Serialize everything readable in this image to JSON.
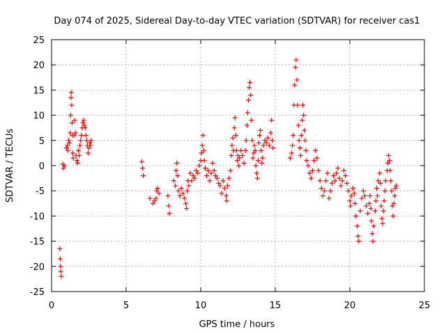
{
  "chart_data": {
    "type": "scatter",
    "title": "Day 074 of 2025, Sidereal Day-to-day VTEC variation (SDTVAR) for receiver cas1",
    "xlabel": "GPS time / hours",
    "ylabel": "SDTVAR / TECUs",
    "xlim": [
      0,
      25
    ],
    "ylim": [
      -25,
      25
    ],
    "xticks": [
      0,
      5,
      10,
      15,
      20,
      25
    ],
    "yticks": [
      -25,
      -20,
      -15,
      -10,
      -5,
      0,
      5,
      10,
      15,
      20,
      25
    ],
    "grid": true,
    "marker": "+",
    "colors": {
      "series": "#ff0000",
      "grid": "#a0a0a0",
      "axis": "#000000"
    },
    "series": [
      {
        "name": "SDTVAR",
        "points": [
          [
            0.55,
            -16.5
          ],
          [
            0.58,
            -18.5
          ],
          [
            0.6,
            -20.0
          ],
          [
            0.62,
            -21.0
          ],
          [
            0.65,
            -22.0
          ],
          [
            0.75,
            0.3
          ],
          [
            0.8,
            -0.5
          ],
          [
            0.85,
            0.0
          ],
          [
            1.0,
            3.5
          ],
          [
            1.05,
            4.0
          ],
          [
            1.1,
            3.0
          ],
          [
            1.15,
            5.0
          ],
          [
            1.2,
            4.5
          ],
          [
            1.25,
            6.5
          ],
          [
            1.28,
            10.0
          ],
          [
            1.3,
            13.5
          ],
          [
            1.32,
            14.5
          ],
          [
            1.35,
            12.0
          ],
          [
            1.38,
            8.5
          ],
          [
            1.4,
            6.0
          ],
          [
            1.42,
            2.5
          ],
          [
            1.45,
            1.5
          ],
          [
            1.5,
            6.0
          ],
          [
            1.55,
            9.0
          ],
          [
            1.6,
            6.5
          ],
          [
            1.65,
            2.0
          ],
          [
            1.7,
            1.0
          ],
          [
            1.75,
            0.5
          ],
          [
            1.8,
            3.0
          ],
          [
            1.85,
            2.0
          ],
          [
            1.9,
            4.0
          ],
          [
            1.95,
            5.0
          ],
          [
            2.0,
            6.0
          ],
          [
            2.05,
            7.5
          ],
          [
            2.1,
            8.5
          ],
          [
            2.15,
            9.0
          ],
          [
            2.2,
            8.0
          ],
          [
            2.25,
            7.5
          ],
          [
            2.3,
            6.0
          ],
          [
            2.35,
            5.0
          ],
          [
            2.4,
            4.0
          ],
          [
            2.45,
            2.5
          ],
          [
            2.5,
            3.5
          ],
          [
            2.55,
            4.5
          ],
          [
            2.6,
            4.0
          ],
          [
            2.65,
            5.0
          ],
          [
            6.05,
            0.8
          ],
          [
            6.1,
            -0.5
          ],
          [
            6.15,
            -2.0
          ],
          [
            6.6,
            -6.5
          ],
          [
            6.8,
            -7.5
          ],
          [
            6.9,
            -7.0
          ],
          [
            7.0,
            -6.5
          ],
          [
            7.05,
            -5.0
          ],
          [
            7.1,
            -4.5
          ],
          [
            7.2,
            -5.5
          ],
          [
            7.8,
            -6.0
          ],
          [
            7.85,
            -8.0
          ],
          [
            7.9,
            -9.5
          ],
          [
            8.2,
            -3.0
          ],
          [
            8.3,
            -4.0
          ],
          [
            8.35,
            -1.0
          ],
          [
            8.4,
            0.5
          ],
          [
            8.45,
            -2.0
          ],
          [
            8.5,
            -5.0
          ],
          [
            8.6,
            -6.0
          ],
          [
            8.7,
            -4.5
          ],
          [
            8.8,
            -5.5
          ],
          [
            8.9,
            -6.5
          ],
          [
            9.0,
            -7.5
          ],
          [
            9.05,
            -8.5
          ],
          [
            9.1,
            -5.0
          ],
          [
            9.15,
            -3.0
          ],
          [
            9.2,
            -4.0
          ],
          [
            9.3,
            -1.5
          ],
          [
            9.4,
            -3.0
          ],
          [
            9.5,
            -2.0
          ],
          [
            9.6,
            -2.5
          ],
          [
            9.7,
            -1.0
          ],
          [
            9.8,
            -1.5
          ],
          [
            9.9,
            0.0
          ],
          [
            10.0,
            1.0
          ],
          [
            10.05,
            2.5
          ],
          [
            10.1,
            4.0
          ],
          [
            10.15,
            6.0
          ],
          [
            10.2,
            3.0
          ],
          [
            10.25,
            1.0
          ],
          [
            10.3,
            -0.5
          ],
          [
            10.4,
            -2.0
          ],
          [
            10.5,
            -1.0
          ],
          [
            10.6,
            -3.0
          ],
          [
            10.7,
            -1.5
          ],
          [
            10.8,
            0.5
          ],
          [
            10.9,
            -1.0
          ],
          [
            11.0,
            -2.0
          ],
          [
            11.1,
            -2.5
          ],
          [
            11.2,
            -3.5
          ],
          [
            11.3,
            -4.0
          ],
          [
            11.4,
            -5.5
          ],
          [
            11.5,
            -3.0
          ],
          [
            11.6,
            -4.5
          ],
          [
            11.7,
            -6.0
          ],
          [
            11.75,
            -7.0
          ],
          [
            11.8,
            -4.0
          ],
          [
            11.9,
            -2.5
          ],
          [
            12.0,
            -1.0
          ],
          [
            12.05,
            2.0
          ],
          [
            12.1,
            4.0
          ],
          [
            12.15,
            5.5
          ],
          [
            12.2,
            3.0
          ],
          [
            12.25,
            7.5
          ],
          [
            12.3,
            9.5
          ],
          [
            12.35,
            6.0
          ],
          [
            12.4,
            3.0
          ],
          [
            12.45,
            1.0
          ],
          [
            12.5,
            2.0
          ],
          [
            12.55,
            0.0
          ],
          [
            12.6,
            1.5
          ],
          [
            12.7,
            3.0
          ],
          [
            12.8,
            2.0
          ],
          [
            12.9,
            0.5
          ],
          [
            13.0,
            3.0
          ],
          [
            13.05,
            5.0
          ],
          [
            13.1,
            8.0
          ],
          [
            13.15,
            10.5
          ],
          [
            13.2,
            13.0
          ],
          [
            13.25,
            15.5
          ],
          [
            13.3,
            16.5
          ],
          [
            13.35,
            14.0
          ],
          [
            13.4,
            9.0
          ],
          [
            13.45,
            5.0
          ],
          [
            13.5,
            1.5
          ],
          [
            13.55,
            2.5
          ],
          [
            13.6,
            4.0
          ],
          [
            13.65,
            3.0
          ],
          [
            13.7,
            0.0
          ],
          [
            13.75,
            -1.5
          ],
          [
            13.8,
            -2.5
          ],
          [
            13.85,
            1.0
          ],
          [
            13.9,
            4.5
          ],
          [
            13.95,
            6.0
          ],
          [
            14.0,
            7.0
          ],
          [
            14.05,
            3.0
          ],
          [
            14.1,
            0.5
          ],
          [
            14.15,
            1.5
          ],
          [
            14.2,
            4.0
          ],
          [
            14.3,
            5.0
          ],
          [
            14.4,
            4.5
          ],
          [
            14.5,
            5.5
          ],
          [
            14.6,
            4.0
          ],
          [
            14.7,
            6.5
          ],
          [
            14.75,
            9.0
          ],
          [
            14.8,
            5.0
          ],
          [
            14.85,
            3.5
          ],
          [
            16.0,
            1.5
          ],
          [
            16.1,
            2.5
          ],
          [
            16.15,
            4.0
          ],
          [
            16.2,
            6.0
          ],
          [
            16.25,
            12.0
          ],
          [
            16.3,
            16.0
          ],
          [
            16.35,
            19.5
          ],
          [
            16.4,
            21.0
          ],
          [
            16.45,
            17.0
          ],
          [
            16.5,
            12.0
          ],
          [
            16.55,
            8.0
          ],
          [
            16.6,
            5.0
          ],
          [
            16.65,
            3.5
          ],
          [
            16.7,
            2.0
          ],
          [
            16.75,
            6.0
          ],
          [
            16.8,
            9.0
          ],
          [
            16.85,
            12.0
          ],
          [
            16.9,
            10.0
          ],
          [
            16.95,
            7.0
          ],
          [
            17.0,
            5.0
          ],
          [
            17.05,
            3.0
          ],
          [
            17.1,
            1.0
          ],
          [
            17.2,
            0.0
          ],
          [
            17.3,
            -1.5
          ],
          [
            17.4,
            -2.5
          ],
          [
            17.5,
            -1.0
          ],
          [
            17.6,
            1.0
          ],
          [
            17.7,
            3.0
          ],
          [
            17.8,
            1.5
          ],
          [
            17.9,
            -1.0
          ],
          [
            18.0,
            -3.0
          ],
          [
            18.1,
            -4.5
          ],
          [
            18.2,
            -6.0
          ],
          [
            18.3,
            -5.0
          ],
          [
            18.4,
            -3.0
          ],
          [
            18.5,
            -1.5
          ],
          [
            18.6,
            -6.5
          ],
          [
            18.7,
            -5.0
          ],
          [
            18.8,
            -3.5
          ],
          [
            18.9,
            -2.0
          ],
          [
            19.0,
            -3.0
          ],
          [
            19.1,
            -1.5
          ],
          [
            19.2,
            -0.5
          ],
          [
            19.3,
            -2.5
          ],
          [
            19.4,
            -4.0
          ],
          [
            19.5,
            -3.0
          ],
          [
            19.6,
            -1.0
          ],
          [
            19.7,
            -2.0
          ],
          [
            19.8,
            -3.5
          ],
          [
            19.9,
            -5.0
          ],
          [
            20.0,
            -7.0
          ],
          [
            20.05,
            -8.0
          ],
          [
            20.1,
            -6.0
          ],
          [
            20.2,
            -4.5
          ],
          [
            20.3,
            -5.5
          ],
          [
            20.35,
            -7.5
          ],
          [
            20.4,
            -10.0
          ],
          [
            20.5,
            -12.0
          ],
          [
            20.55,
            -14.0
          ],
          [
            20.6,
            -15.0
          ],
          [
            20.7,
            -9.0
          ],
          [
            20.8,
            -6.5
          ],
          [
            20.9,
            -5.0
          ],
          [
            21.0,
            -6.0
          ],
          [
            21.1,
            -8.0
          ],
          [
            21.2,
            -9.5
          ],
          [
            21.3,
            -7.5
          ],
          [
            21.35,
            -6.0
          ],
          [
            21.4,
            -8.5
          ],
          [
            21.45,
            -11.0
          ],
          [
            21.5,
            -13.5
          ],
          [
            21.55,
            -15.0
          ],
          [
            21.6,
            -12.0
          ],
          [
            21.7,
            -9.0
          ],
          [
            21.75,
            -7.0
          ],
          [
            21.8,
            -4.5
          ],
          [
            21.85,
            -6.0
          ],
          [
            21.9,
            -3.0
          ],
          [
            22.0,
            -1.5
          ],
          [
            22.05,
            -3.5
          ],
          [
            22.1,
            -8.0
          ],
          [
            22.15,
            -10.5
          ],
          [
            22.2,
            -11.5
          ],
          [
            22.25,
            -9.0
          ],
          [
            22.3,
            -7.0
          ],
          [
            22.35,
            -5.0
          ],
          [
            22.4,
            -3.0
          ],
          [
            22.5,
            -1.0
          ],
          [
            22.55,
            0.5
          ],
          [
            22.6,
            2.0
          ],
          [
            22.65,
            1.0
          ],
          [
            22.7,
            -1.0
          ],
          [
            22.75,
            -3.0
          ],
          [
            22.8,
            -5.0
          ],
          [
            22.85,
            -8.0
          ],
          [
            22.9,
            -10.0
          ],
          [
            22.95,
            -7.5
          ],
          [
            23.0,
            -6.0
          ],
          [
            23.05,
            -4.5
          ],
          [
            23.1,
            -4.0
          ]
        ]
      }
    ]
  }
}
